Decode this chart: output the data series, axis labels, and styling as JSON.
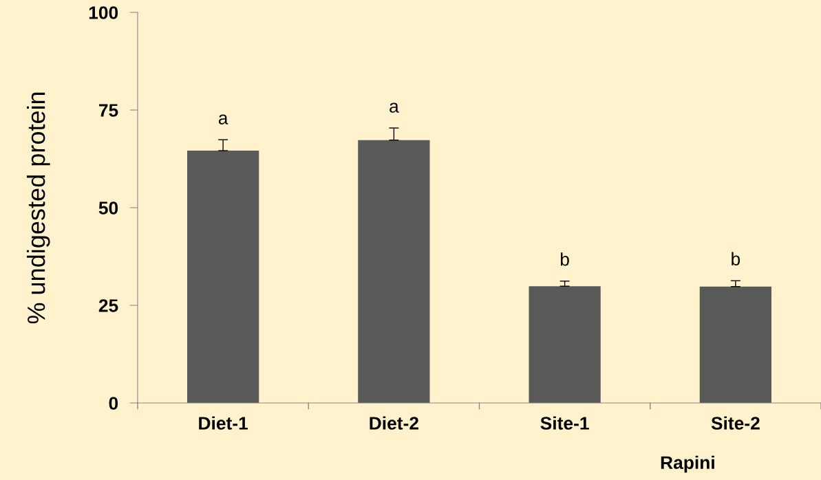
{
  "chart_data": {
    "type": "bar",
    "xlabel": "Rapini",
    "ylabel": "% undigested protein",
    "categories": [
      "Diet-1",
      "Diet-2",
      "Site-1",
      "Site-2"
    ],
    "values": [
      64.6,
      67.3,
      29.9,
      29.8
    ],
    "errors": [
      [
        64.6,
        67.4
      ],
      [
        67.3,
        70.4
      ],
      [
        29.9,
        31.2
      ],
      [
        29.8,
        31.3
      ]
    ],
    "color": "#595959",
    "ylim": [
      0,
      100
    ],
    "yticks": [
      0,
      25,
      50,
      75,
      100
    ],
    "grid": false,
    "legend": false,
    "annotations": [
      "a",
      "a",
      "b",
      "b"
    ]
  }
}
